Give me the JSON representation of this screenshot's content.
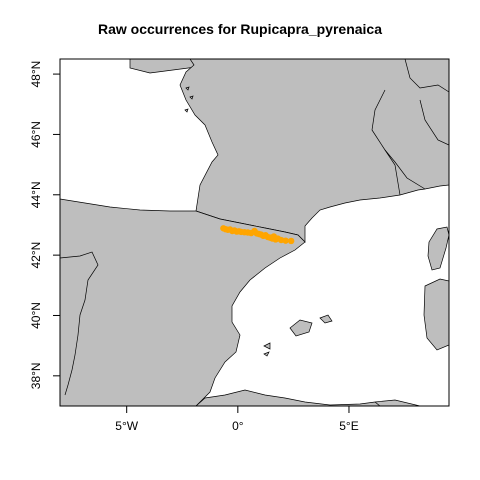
{
  "title": "Raw occurrences for Rupicapra_pyrenaica",
  "colors": {
    "land": "#bebebe",
    "coast": "#000000",
    "sea": "#ffffff",
    "occurrence": "#ffa500"
  },
  "chart_data": {
    "type": "scatter",
    "projection": "longitude-latitude",
    "title": "Raw occurrences for Rupicapra_pyrenaica",
    "xlim": [
      -8,
      9.5
    ],
    "ylim": [
      37,
      48.5
    ],
    "x_ticks": [
      {
        "value": -5,
        "label": "5°W"
      },
      {
        "value": 0,
        "label": "0°"
      },
      {
        "value": 5,
        "label": "5°E"
      }
    ],
    "y_ticks": [
      {
        "value": 38,
        "label": "38°N"
      },
      {
        "value": 40,
        "label": "40°N"
      },
      {
        "value": 42,
        "label": "42°N"
      },
      {
        "value": 44,
        "label": "44°N"
      },
      {
        "value": 46,
        "label": "46°N"
      },
      {
        "value": 48,
        "label": "48°N"
      }
    ],
    "series": [
      {
        "points": [
          {
            "lon": -0.65,
            "lat": 42.89
          },
          {
            "lon": -0.55,
            "lat": 42.86
          },
          {
            "lon": -0.45,
            "lat": 42.84
          },
          {
            "lon": -0.35,
            "lat": 42.85
          },
          {
            "lon": -0.25,
            "lat": 42.8
          },
          {
            "lon": -0.15,
            "lat": 42.82
          },
          {
            "lon": -0.05,
            "lat": 42.78
          },
          {
            "lon": 0.05,
            "lat": 42.79
          },
          {
            "lon": 0.15,
            "lat": 42.77
          },
          {
            "lon": 0.3,
            "lat": 42.76
          },
          {
            "lon": 0.45,
            "lat": 42.75
          },
          {
            "lon": 0.6,
            "lat": 42.73
          },
          {
            "lon": 0.75,
            "lat": 42.8
          },
          {
            "lon": 0.85,
            "lat": 42.72
          },
          {
            "lon": 0.95,
            "lat": 42.7
          },
          {
            "lon": 1.05,
            "lat": 42.68
          },
          {
            "lon": 1.15,
            "lat": 42.64
          },
          {
            "lon": 1.25,
            "lat": 42.66
          },
          {
            "lon": 1.35,
            "lat": 42.6
          },
          {
            "lon": 1.45,
            "lat": 42.58
          },
          {
            "lon": 1.55,
            "lat": 42.55
          },
          {
            "lon": 1.62,
            "lat": 42.62
          },
          {
            "lon": 1.7,
            "lat": 42.52
          },
          {
            "lon": 1.8,
            "lat": 42.55
          },
          {
            "lon": 1.95,
            "lat": 42.5
          },
          {
            "lon": 2.15,
            "lat": 42.48
          },
          {
            "lon": 2.4,
            "lat": 42.47
          }
        ]
      }
    ],
    "legend": "none",
    "grid": false
  }
}
